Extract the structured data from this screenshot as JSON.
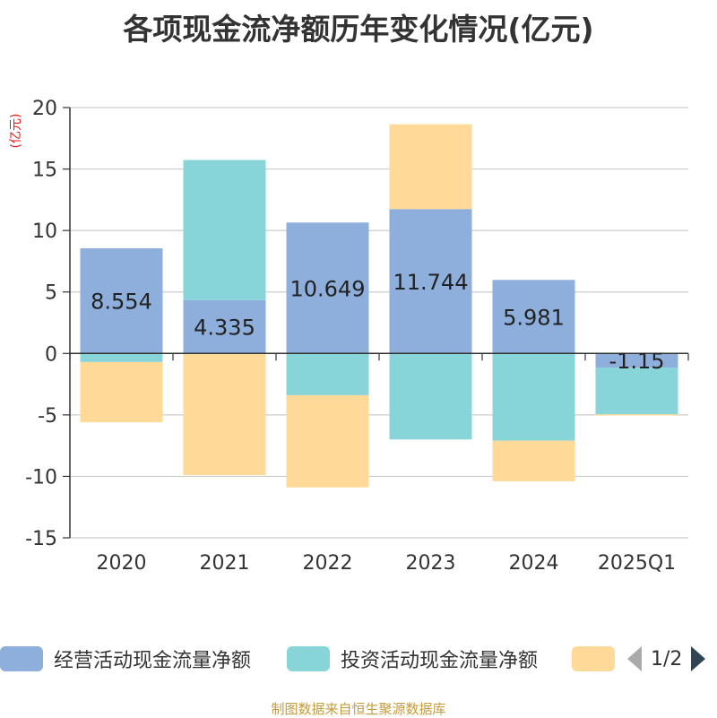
{
  "chart_data": {
    "type": "bar",
    "stacked": true,
    "title": "各项现金流净额历年变化情况(亿元)",
    "ylabel": "(亿元)",
    "xlabel": "",
    "ylim": [
      -15,
      20
    ],
    "yticks": [
      20,
      15,
      10,
      5,
      0,
      -5,
      -10,
      -15
    ],
    "grid": true,
    "categories": [
      "2020",
      "2021",
      "2022",
      "2023",
      "2024",
      "2025Q1"
    ],
    "series": [
      {
        "name": "经营活动现金流量净额",
        "color": "#8eaedb",
        "values": [
          8.554,
          4.335,
          10.649,
          11.744,
          5.981,
          -1.15
        ],
        "labels": [
          "8.554",
          "4.335",
          "10.649",
          "11.744",
          "5.981",
          "-1.15"
        ]
      },
      {
        "name": "投资活动现金流量净额",
        "color": "#87d5d9",
        "values": [
          -0.7,
          11.4,
          -3.4,
          -7.0,
          -7.1,
          -3.8
        ]
      },
      {
        "name": "",
        "color": "#ffd998",
        "values": [
          -4.9,
          -9.9,
          -7.5,
          6.9,
          -3.3,
          -0.1
        ]
      }
    ],
    "legend_position": "bottom"
  },
  "legend": {
    "page_indicator": "1/2"
  },
  "source": "制图数据来自恒生聚源数据库"
}
